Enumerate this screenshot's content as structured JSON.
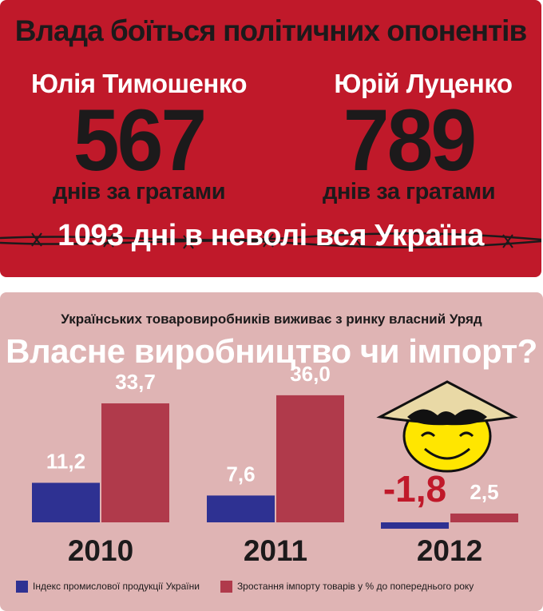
{
  "top_panel": {
    "title": "Влада боїться політичних опонентів",
    "people": [
      {
        "name": "Юлія Тимошенко",
        "days": "567",
        "days_label": "днів за гратами"
      },
      {
        "name": "Юрій Луценко",
        "days": "789",
        "days_label": "днів за гратами"
      }
    ],
    "bottom_line": "1093 дні в неволі вся Україна",
    "colors": {
      "panel": "#c0192a",
      "dark_text": "#1c1a1b",
      "light_text": "#ffffff"
    }
  },
  "chart_panel": {
    "subtitle": "Українських товаровиробників виживає з ринку власний Уряд",
    "title": "Власне виробництво чи імпорт?",
    "background": "#dfb4b4"
  },
  "chart_data": {
    "type": "bar",
    "categories": [
      "2010",
      "2011",
      "2012"
    ],
    "series": [
      {
        "name": "Індекс промислової продукції України",
        "color": "#2e3192",
        "values": [
          11.2,
          7.6,
          -1.8
        ],
        "labels": [
          "11,2",
          "7,6",
          "-1,8"
        ]
      },
      {
        "name": "Зростання імпорту товарів у % до попереднього року",
        "color": "#b03a4b",
        "values": [
          33.7,
          36.0,
          2.5
        ],
        "labels": [
          "33,7",
          "36,0",
          "2,5"
        ]
      }
    ],
    "highlight_label_color": "#c0192a"
  },
  "icons": {
    "decoration": "smiling-face-conical-hat-icon",
    "wire": "barbed-wire-icon"
  }
}
